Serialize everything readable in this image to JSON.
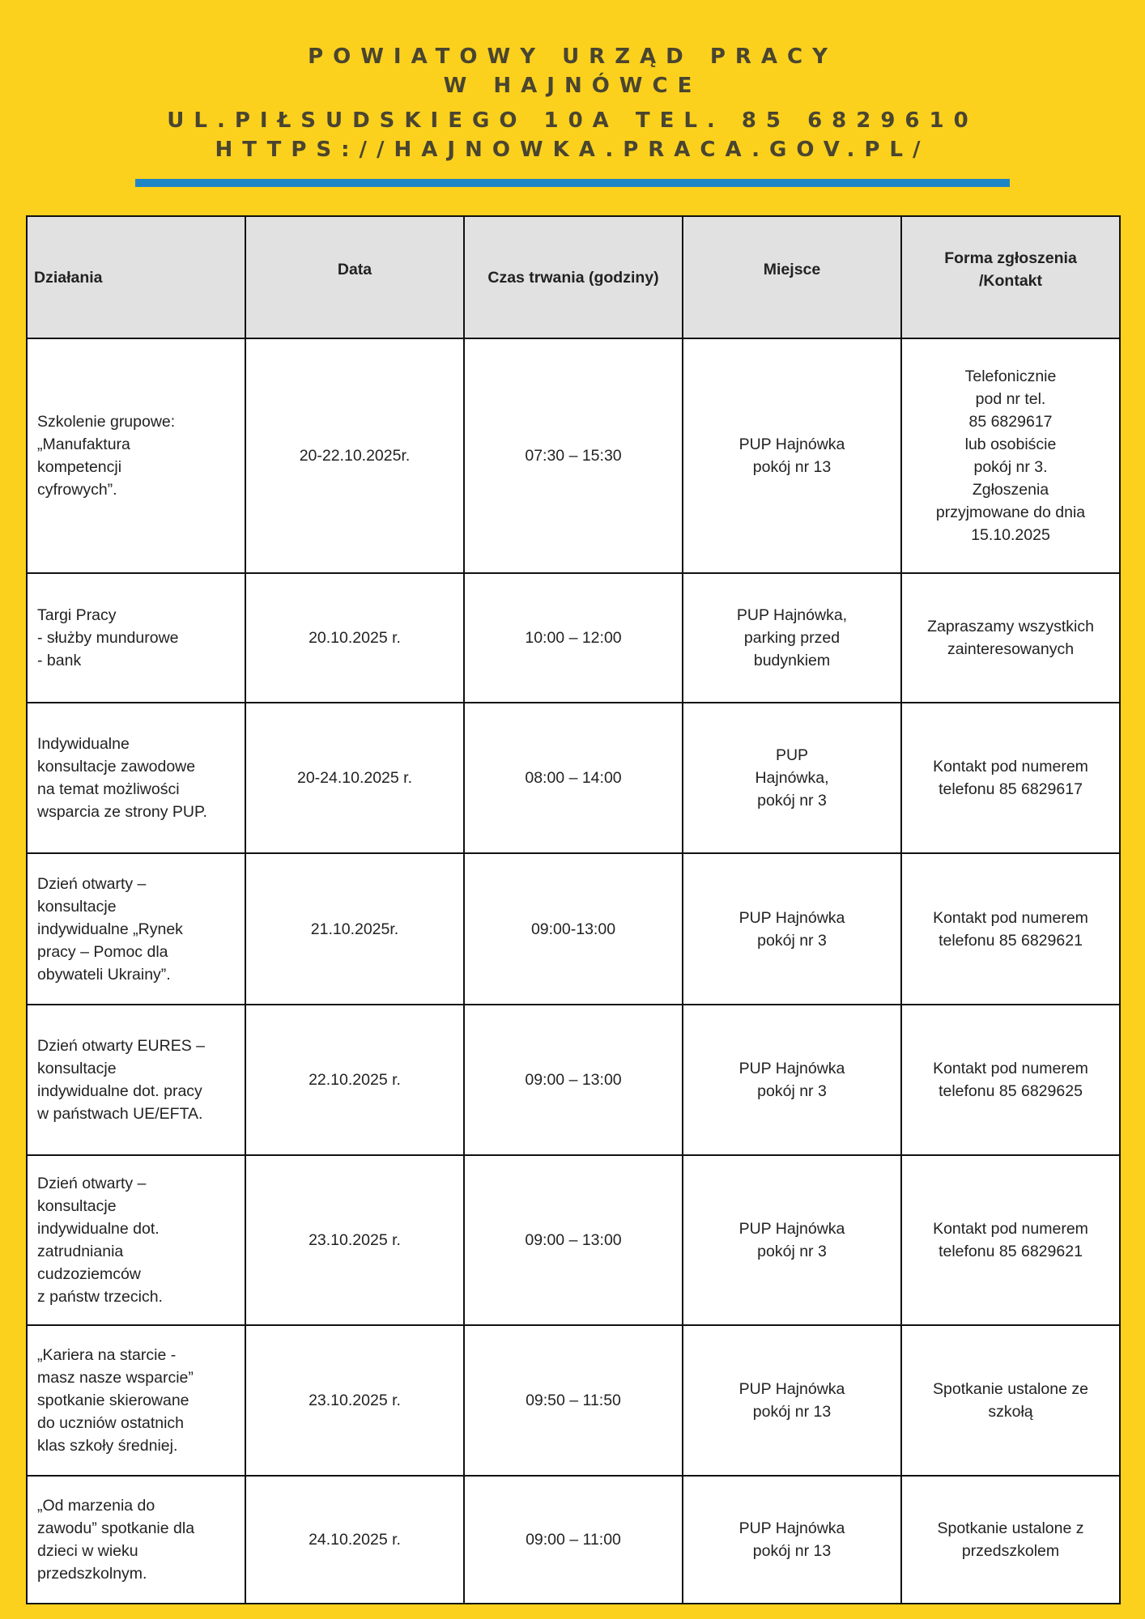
{
  "header": {
    "line1": "POWIATOWY URZĄD PRACY",
    "line2": "W HAJNÓWCE",
    "line3": "UL.PIŁSUDSKIEGO 10A TEL. 85 6829610",
    "line4": "HTTPS://HAJNOWKA.PRACA.GOV.PL/",
    "accent_color": "#1f86c6",
    "background_color": "#fbd11d"
  },
  "table": {
    "columns": [
      "Działania",
      "Data",
      "Czas trwania (godziny)",
      "Miejsce",
      "Forma zgłoszenia\n/Kontakt"
    ],
    "rows": [
      [
        "Szkolenie grupowe:\n„Manufaktura\nkompetencji\ncyfrowych”.",
        "20-22.10.2025r.",
        "07:30 – 15:30",
        "PUP Hajnówka\npokój nr 13",
        "Telefonicznie\npod nr tel.\n85 6829617\nlub osobiście\npokój nr 3.\nZgłoszenia\nprzyjmowane do dnia\n15.10.2025"
      ],
      [
        "Targi Pracy\n- służby mundurowe\n- bank",
        "20.10.2025 r.",
        "10:00 – 12:00",
        "PUP Hajnówka,\nparking przed\nbudynkiem",
        "Zapraszamy wszystkich\nzainteresowanych"
      ],
      [
        "Indywidualne\nkonsultacje zawodowe\nna temat możliwości\nwsparcia ze strony PUP.",
        "20-24.10.2025 r.",
        "08:00 – 14:00",
        "PUP\nHajnówka,\npokój nr 3",
        "Kontakt pod numerem\ntelefonu 85 6829617"
      ],
      [
        "Dzień otwarty –\nkonsultacje\nindywidualne „Rynek\npracy – Pomoc dla\nobywateli Ukrainy”.",
        "21.10.2025r.",
        "09:00-13:00",
        "PUP Hajnówka\npokój nr 3",
        "Kontakt pod numerem\ntelefonu 85 6829621"
      ],
      [
        "Dzień otwarty EURES –\nkonsultacje\nindywidualne dot. pracy\nw państwach UE/EFTA.",
        "22.10.2025 r.",
        "09:00 – 13:00",
        "PUP Hajnówka\npokój nr 3",
        "Kontakt pod numerem\ntelefonu 85 6829625"
      ],
      [
        "Dzień otwarty –\nkonsultacje\nindywidualne dot.\nzatrudniania\ncudzoziemców\nz państw trzecich.",
        "23.10.2025 r.",
        "09:00 – 13:00",
        "PUP Hajnówka\npokój nr 3",
        "Kontakt pod numerem\ntelefonu 85 6829621"
      ],
      [
        "„Kariera na starcie -\nmasz nasze wsparcie”\nspotkanie skierowane\ndo uczniów ostatnich\nklas szkoły średniej.",
        "23.10.2025 r.",
        "09:50 – 11:50",
        "PUP Hajnówka\npokój nr 13",
        "Spotkanie ustalone ze\nszkołą"
      ],
      [
        "„Od marzenia do\nzawodu” spotkanie dla\ndzieci w wieku\nprzedszkolnym.",
        "24.10.2025 r.",
        "09:00 – 11:00",
        "PUP Hajnówka\npokój nr 13",
        "Spotkanie ustalone z\nprzedszkolem"
      ]
    ]
  }
}
